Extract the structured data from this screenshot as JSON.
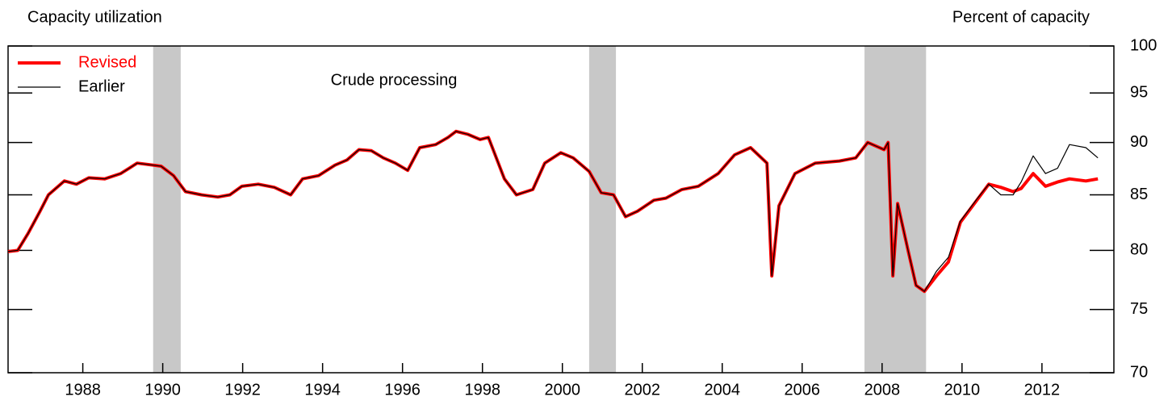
{
  "chart_data": {
    "type": "line",
    "title": "Capacity utilization",
    "y_axis_label": "Percent of capacity",
    "annotation": "Crude processing",
    "log_scale": true,
    "legend": "top-left",
    "xlim": [
      1986.63,
      2014.3
    ],
    "ylim": [
      70,
      100
    ],
    "yticks": [
      70,
      75,
      80,
      85,
      90,
      95,
      100
    ],
    "xticks": [
      {
        "value": 1988.5,
        "label": "1988"
      },
      {
        "value": 1990.5,
        "label": "1990"
      },
      {
        "value": 1992.5,
        "label": "1992"
      },
      {
        "value": 1994.5,
        "label": "1994"
      },
      {
        "value": 1996.5,
        "label": "1996"
      },
      {
        "value": 1998.5,
        "label": "1998"
      },
      {
        "value": 2000.5,
        "label": "2000"
      },
      {
        "value": 2002.5,
        "label": "2002"
      },
      {
        "value": 2004.5,
        "label": "2004"
      },
      {
        "value": 2006.5,
        "label": "2006"
      },
      {
        "value": 2008.5,
        "label": "2008"
      },
      {
        "value": 2010.5,
        "label": "2010"
      },
      {
        "value": 2012.5,
        "label": "2012"
      }
    ],
    "recessions": [
      [
        1990.26,
        1990.95
      ],
      [
        2001.17,
        2001.84
      ],
      [
        2008.06,
        2009.6
      ]
    ],
    "recession_color": "#c8c8c8",
    "x": [
      1986.63,
      1986.87,
      1987.13,
      1987.43,
      1987.64,
      1988.04,
      1988.34,
      1988.65,
      1989.05,
      1989.45,
      1989.66,
      1989.86,
      1990.26,
      1990.46,
      1990.77,
      1991.07,
      1991.47,
      1991.88,
      1992.18,
      1992.48,
      1992.89,
      1993.29,
      1993.7,
      1994.0,
      1994.4,
      1994.81,
      1995.11,
      1995.41,
      1995.72,
      1996.02,
      1996.32,
      1996.63,
      1996.93,
      1997.33,
      1997.64,
      1997.84,
      1998.14,
      1998.44,
      1998.65,
      1999.05,
      1999.35,
      1999.76,
      2000.06,
      2000.46,
      2000.77,
      2001.17,
      2001.47,
      2001.78,
      2002.08,
      2002.38,
      2002.79,
      2003.09,
      2003.49,
      2003.9,
      2004.4,
      2004.81,
      2005.21,
      2005.62,
      2005.74,
      2005.92,
      2006.32,
      2006.83,
      2007.43,
      2007.84,
      2008.14,
      2008.55,
      2008.65,
      2008.77,
      2008.89,
      2009.15,
      2009.35,
      2009.56,
      2009.86,
      2010.16,
      2010.46,
      2010.87,
      2011.17,
      2011.47,
      2011.78,
      2011.98,
      2012.28,
      2012.59,
      2012.89,
      2013.19,
      2013.6,
      2013.9
    ],
    "series": [
      {
        "name": "Revised",
        "color": "#ff0000",
        "values": [
          79.9,
          80.0,
          81.5,
          83.5,
          85.0,
          86.3,
          86.0,
          86.6,
          86.5,
          87.0,
          87.5,
          88.0,
          87.8,
          87.7,
          86.8,
          85.3,
          85.0,
          84.8,
          85.0,
          85.8,
          86.0,
          85.7,
          85.0,
          86.5,
          86.8,
          87.8,
          88.3,
          89.3,
          89.2,
          88.5,
          88.0,
          87.3,
          89.5,
          89.8,
          90.5,
          91.1,
          90.8,
          90.3,
          90.5,
          86.5,
          85.0,
          85.5,
          88.0,
          89.0,
          88.5,
          87.2,
          85.2,
          85.0,
          83.0,
          83.5,
          84.5,
          84.7,
          85.5,
          85.8,
          87.0,
          88.8,
          89.5,
          88.0,
          77.8,
          84.0,
          87.0,
          88.0,
          88.2,
          88.5,
          90.0,
          89.3,
          90.0,
          77.8,
          84.2,
          80.0,
          77.0,
          76.5,
          77.8,
          79.0,
          82.5,
          84.5,
          86.0,
          85.7,
          85.3,
          85.6,
          87.0,
          85.8,
          86.2,
          86.5,
          86.3,
          86.5
        ]
      },
      {
        "name": "Earlier",
        "color": "#000000",
        "values": [
          79.9,
          80.0,
          81.5,
          83.5,
          85.0,
          86.3,
          86.0,
          86.6,
          86.5,
          87.0,
          87.5,
          88.0,
          87.8,
          87.7,
          86.8,
          85.3,
          85.0,
          84.8,
          85.0,
          85.8,
          86.0,
          85.7,
          85.0,
          86.5,
          86.8,
          87.8,
          88.3,
          89.3,
          89.2,
          88.5,
          88.0,
          87.3,
          89.5,
          89.8,
          90.5,
          91.1,
          90.8,
          90.3,
          90.5,
          86.5,
          85.0,
          85.5,
          88.0,
          89.0,
          88.5,
          87.2,
          85.2,
          85.0,
          83.0,
          83.5,
          84.5,
          84.7,
          85.5,
          85.8,
          87.0,
          88.8,
          89.5,
          88.0,
          77.8,
          84.0,
          87.0,
          88.0,
          88.2,
          88.5,
          90.0,
          89.3,
          90.0,
          77.8,
          84.2,
          80.0,
          77.0,
          76.5,
          78.2,
          79.4,
          82.6,
          84.6,
          86.0,
          85.0,
          85.0,
          86.2,
          88.7,
          87.0,
          87.5,
          89.8,
          89.5,
          88.5
        ]
      }
    ]
  }
}
